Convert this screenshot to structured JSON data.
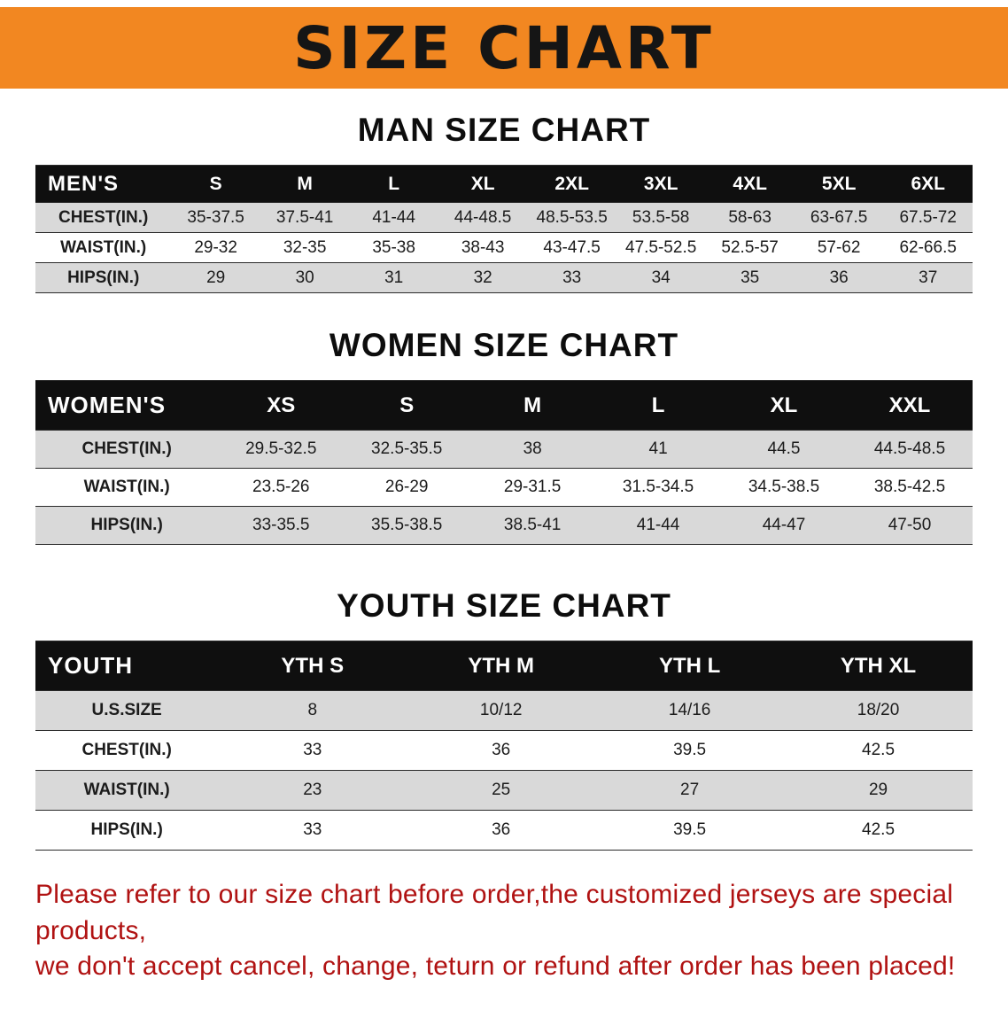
{
  "banner": {
    "title": "SIZE CHART",
    "bg_color": "#f28721",
    "text_color": "#151515"
  },
  "colors": {
    "table_header_bg": "#0f0f0f",
    "row_stripe": "#d9d9d9",
    "footer_text": "#b01212"
  },
  "men": {
    "heading": "MAN SIZE CHART",
    "header": [
      "MEN'S",
      "S",
      "M",
      "L",
      "XL",
      "2XL",
      "3XL",
      "4XL",
      "5XL",
      "6XL"
    ],
    "rows": [
      {
        "label": "CHEST(IN.)",
        "values": [
          "35-37.5",
          "37.5-41",
          "41-44",
          "44-48.5",
          "48.5-53.5",
          "53.5-58",
          "58-63",
          "63-67.5",
          "67.5-72"
        ]
      },
      {
        "label": "WAIST(IN.)",
        "values": [
          "29-32",
          "32-35",
          "35-38",
          "38-43",
          "43-47.5",
          "47.5-52.5",
          "52.5-57",
          "57-62",
          "62-66.5"
        ]
      },
      {
        "label": "HIPS(IN.)",
        "values": [
          "29",
          "30",
          "31",
          "32",
          "33",
          "34",
          "35",
          "36",
          "37"
        ]
      }
    ]
  },
  "women": {
    "heading": "WOMEN SIZE CHART",
    "header": [
      "WOMEN'S",
      "XS",
      "S",
      "M",
      "L",
      "XL",
      "XXL"
    ],
    "rows": [
      {
        "label": "CHEST(IN.)",
        "values": [
          "29.5-32.5",
          "32.5-35.5",
          "38",
          "41",
          "44.5",
          "44.5-48.5"
        ]
      },
      {
        "label": "WAIST(IN.)",
        "values": [
          "23.5-26",
          "26-29",
          "29-31.5",
          "31.5-34.5",
          "34.5-38.5",
          "38.5-42.5"
        ]
      },
      {
        "label": "HIPS(IN.)",
        "values": [
          "33-35.5",
          "35.5-38.5",
          "38.5-41",
          "41-44",
          "44-47",
          "47-50"
        ]
      }
    ]
  },
  "youth": {
    "heading": "YOUTH SIZE CHART",
    "header": [
      "YOUTH",
      "YTH S",
      "YTH M",
      "YTH L",
      "YTH XL"
    ],
    "rows": [
      {
        "label": "U.S.SIZE",
        "values": [
          "8",
          "10/12",
          "14/16",
          "18/20"
        ]
      },
      {
        "label": "CHEST(IN.)",
        "values": [
          "33",
          "36",
          "39.5",
          "42.5"
        ]
      },
      {
        "label": "WAIST(IN.)",
        "values": [
          "23",
          "25",
          "27",
          "29"
        ]
      },
      {
        "label": "HIPS(IN.)",
        "values": [
          "33",
          "36",
          "39.5",
          "42.5"
        ]
      }
    ]
  },
  "footer": {
    "line1": "Please refer to our size chart before order,the customized jerseys are special products,",
    "line2": "we don't accept cancel, change, teturn or refund after order has been placed!"
  }
}
